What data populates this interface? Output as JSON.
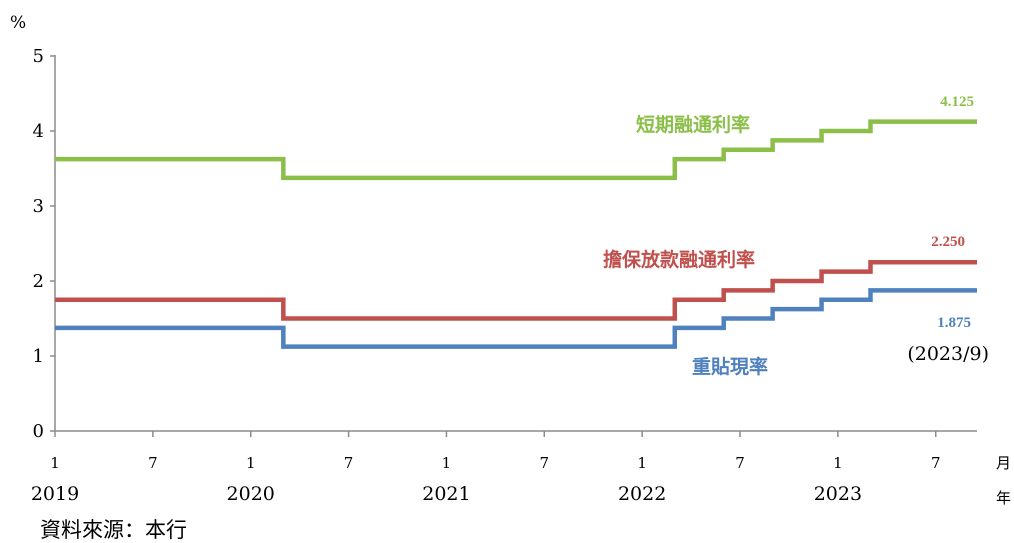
{
  "chart_data": {
    "type": "line",
    "step": true,
    "y_unit": "%",
    "ylim": [
      0,
      5
    ],
    "y_ticks": [
      "0",
      "1",
      "2",
      "3",
      "4",
      "5"
    ],
    "x_tick_months": [
      "1",
      "7",
      "1",
      "7",
      "1",
      "7",
      "1",
      "7",
      "1",
      "7"
    ],
    "x_years": [
      "2019",
      "2020",
      "2021",
      "2022",
      "2023"
    ],
    "x_unit_month": "月",
    "x_unit_year": "年",
    "x_range": [
      "2019-01",
      "2023-09"
    ],
    "series": [
      {
        "name": "短期融通利率",
        "color": "#8cbf4a",
        "end_label": "4.125",
        "steps": [
          {
            "from": "2019-01",
            "value": 3.625
          },
          {
            "from": "2020-03",
            "value": 3.375
          },
          {
            "from": "2022-03",
            "value": 3.625
          },
          {
            "from": "2022-06",
            "value": 3.75
          },
          {
            "from": "2022-09",
            "value": 3.875
          },
          {
            "from": "2022-12",
            "value": 4.0
          },
          {
            "from": "2023-03",
            "value": 4.125
          }
        ]
      },
      {
        "name": "擔保放款融通利率",
        "color": "#c0504d",
        "end_label": "2.250",
        "steps": [
          {
            "from": "2019-01",
            "value": 1.75
          },
          {
            "from": "2020-03",
            "value": 1.5
          },
          {
            "from": "2022-03",
            "value": 1.75
          },
          {
            "from": "2022-06",
            "value": 1.875
          },
          {
            "from": "2022-09",
            "value": 2.0
          },
          {
            "from": "2022-12",
            "value": 2.125
          },
          {
            "from": "2023-03",
            "value": 2.25
          }
        ]
      },
      {
        "name": "重貼現率",
        "color": "#4f81bd",
        "end_label": "1.875",
        "steps": [
          {
            "from": "2019-01",
            "value": 1.375
          },
          {
            "from": "2020-03",
            "value": 1.125
          },
          {
            "from": "2022-03",
            "value": 1.375
          },
          {
            "from": "2022-06",
            "value": 1.5
          },
          {
            "from": "2022-09",
            "value": 1.625
          },
          {
            "from": "2022-12",
            "value": 1.75
          },
          {
            "from": "2023-03",
            "value": 1.875
          }
        ]
      }
    ],
    "annotation": "(2023/9)",
    "source": "資料來源：本行"
  }
}
